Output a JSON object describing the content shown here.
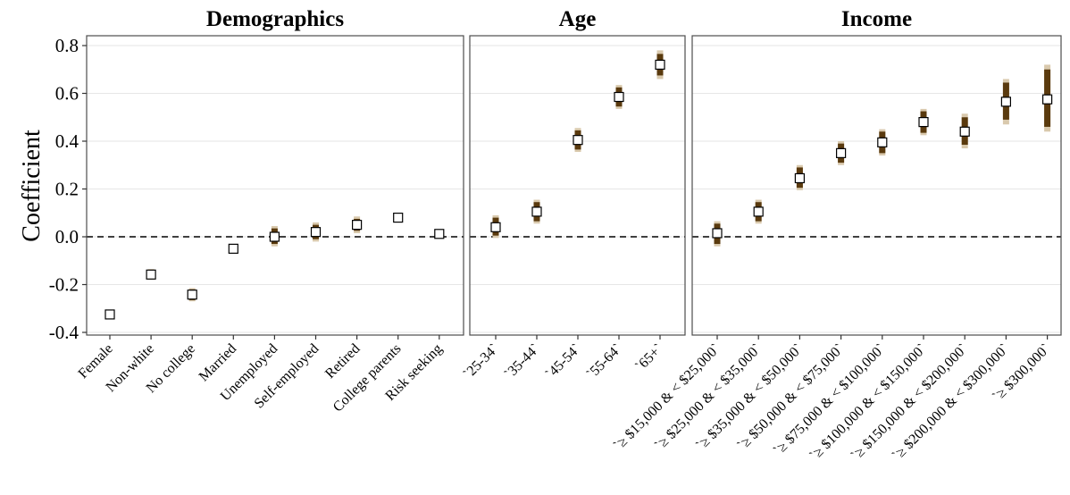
{
  "colors": {
    "ci_outer": "#d9c9ad",
    "ci_inner": "#5a3a0e",
    "point_fill": "#ffffff",
    "point_stroke": "#000000",
    "gridline": "#e6e6e6",
    "panel_border": "#4d4d4d",
    "zero_line": "#000000"
  },
  "chart_data": {
    "type": "scatter",
    "ylabel": "Coefficient",
    "ylim": [
      -0.4,
      0.8
    ],
    "yticks": [
      "-0.4",
      "-0.2",
      "0.0",
      "0.2",
      "0.4",
      "0.6",
      "0.8"
    ],
    "ytick_values": [
      -0.4,
      -0.2,
      0.0,
      0.2,
      0.4,
      0.6,
      0.8
    ],
    "reference_line": 0.0,
    "grid": true,
    "panels": [
      {
        "title": "Demographics",
        "categories": [
          "Female",
          "Non-white",
          "No college",
          "Married",
          "Unemployed",
          "Self-employed",
          "Retired",
          "College parents",
          "Risk seeking"
        ],
        "estimates": [
          -0.325,
          -0.158,
          -0.242,
          -0.05,
          0.0,
          0.02,
          0.05,
          0.08,
          0.012
        ],
        "ci_inner": [
          [
            -0.34,
            -0.31
          ],
          [
            -0.175,
            -0.14
          ],
          [
            -0.265,
            -0.22
          ],
          [
            -0.065,
            -0.035
          ],
          [
            -0.03,
            0.035
          ],
          [
            -0.01,
            0.05
          ],
          [
            0.025,
            0.075
          ],
          [
            0.065,
            0.095
          ],
          [
            0.005,
            0.019
          ]
        ],
        "ci_outer": [
          [
            -0.345,
            -0.305
          ],
          [
            -0.18,
            -0.135
          ],
          [
            -0.27,
            -0.215
          ],
          [
            -0.07,
            -0.03
          ],
          [
            -0.04,
            0.045
          ],
          [
            -0.02,
            0.06
          ],
          [
            0.015,
            0.085
          ],
          [
            0.06,
            0.1
          ],
          [
            0.003,
            0.021
          ]
        ]
      },
      {
        "title": "Age",
        "categories": [
          "`25-34`",
          "`35-44`",
          "`45-54`",
          "`55-64`",
          "`65+`"
        ],
        "estimates": [
          0.04,
          0.105,
          0.405,
          0.585,
          0.72
        ],
        "ci_inner": [
          [
            0.005,
            0.08
          ],
          [
            0.065,
            0.145
          ],
          [
            0.365,
            0.445
          ],
          [
            0.545,
            0.625
          ],
          [
            0.675,
            0.765
          ]
        ],
        "ci_outer": [
          [
            -0.005,
            0.09
          ],
          [
            0.055,
            0.155
          ],
          [
            0.355,
            0.455
          ],
          [
            0.535,
            0.635
          ],
          [
            0.66,
            0.78
          ]
        ]
      },
      {
        "title": "Income",
        "categories": [
          "`≥ $15,000 & < $25,000`",
          "`≥ $25,000 & < $35,000`",
          "`≥ $35,000 & < $50,000`",
          "`≥ $50,000 & < $75,000`",
          "`≥ $75,000 & < $100,000`",
          "`≥ $100,000 & < $150,000`",
          "`≥ $150,000 & < $200,000`",
          "`≥ $200,000 & < $300,000`",
          "`≥ $300,000`"
        ],
        "estimates": [
          0.015,
          0.105,
          0.245,
          0.35,
          0.395,
          0.48,
          0.44,
          0.565,
          0.575
        ],
        "ci_inner": [
          [
            -0.03,
            0.055
          ],
          [
            0.065,
            0.145
          ],
          [
            0.205,
            0.29
          ],
          [
            0.31,
            0.39
          ],
          [
            0.35,
            0.44
          ],
          [
            0.435,
            0.525
          ],
          [
            0.385,
            0.5
          ],
          [
            0.49,
            0.645
          ],
          [
            0.46,
            0.7
          ]
        ],
        "ci_outer": [
          [
            -0.04,
            0.065
          ],
          [
            0.055,
            0.155
          ],
          [
            0.195,
            0.3
          ],
          [
            0.3,
            0.4
          ],
          [
            0.34,
            0.45
          ],
          [
            0.425,
            0.535
          ],
          [
            0.37,
            0.515
          ],
          [
            0.47,
            0.66
          ],
          [
            0.44,
            0.72
          ]
        ]
      }
    ]
  }
}
